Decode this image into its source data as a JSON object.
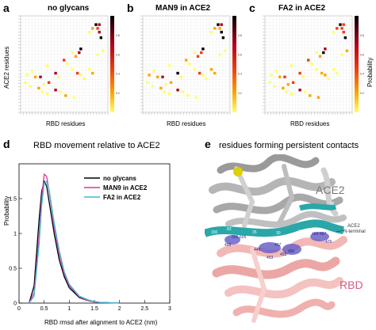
{
  "panels": {
    "a": {
      "letter": "a",
      "title": "no glycans"
    },
    "b": {
      "letter": "b",
      "title": "MAN9 in ACE2"
    },
    "c": {
      "letter": "c",
      "title": "FA2 in ACE2"
    },
    "d": {
      "letter": "d",
      "title": "RBD movement relative to ACE2"
    },
    "e": {
      "letter": "e",
      "title": "residues forming persistent contacts"
    }
  },
  "heatmap_axes": {
    "ylabel": "ACE2 residues",
    "xlabel": "RBD residues",
    "colorbar_label": "Probability",
    "colorbar_ticks": [
      "0.8",
      "0.6",
      "0.4",
      "0.2"
    ],
    "colors": {
      "high": "#000000",
      "mid_high": "#b3001b",
      "mid": "#f03c13",
      "mid_low": "#ffa500",
      "low": "#ffff66"
    }
  },
  "chart_data": [
    {
      "type": "line",
      "title": "RBD movement relative to ACE2",
      "xlabel": "RBD rmsd after alignment to ACE2 (nm)",
      "ylabel": "Probability",
      "xlim": [
        0,
        3
      ],
      "xticks": [
        "0",
        "0.5",
        "1",
        "1.5",
        "2",
        "2.5",
        "3"
      ],
      "ylim": [
        0,
        2
      ],
      "yticks": [
        "0",
        "0.5",
        "1",
        "1.5"
      ],
      "legend_position": "top-right",
      "series": [
        {
          "name": "no glycans",
          "color": "#000000",
          "x": [
            0.2,
            0.3,
            0.4,
            0.45,
            0.5,
            0.55,
            0.6,
            0.7,
            0.8,
            0.9,
            1.0,
            1.2,
            1.4,
            1.6,
            2.0
          ],
          "y": [
            0.0,
            0.25,
            1.2,
            1.6,
            1.75,
            1.68,
            1.45,
            1.0,
            0.62,
            0.38,
            0.22,
            0.08,
            0.03,
            0.01,
            0.0
          ]
        },
        {
          "name": "MAN9 in ACE2",
          "color": "#e0359a",
          "x": [
            0.2,
            0.3,
            0.4,
            0.45,
            0.5,
            0.55,
            0.6,
            0.7,
            0.8,
            0.9,
            1.0,
            1.2,
            1.4,
            1.6,
            2.0
          ],
          "y": [
            0.0,
            0.15,
            0.95,
            1.5,
            1.85,
            1.82,
            1.6,
            1.1,
            0.7,
            0.42,
            0.25,
            0.09,
            0.03,
            0.01,
            0.0
          ]
        },
        {
          "name": "FA2 in ACE2",
          "color": "#3fb6d9",
          "x": [
            0.2,
            0.3,
            0.4,
            0.45,
            0.5,
            0.55,
            0.6,
            0.7,
            0.8,
            0.9,
            1.0,
            1.2,
            1.4,
            1.6,
            2.0
          ],
          "y": [
            0.0,
            0.1,
            0.85,
            1.4,
            1.72,
            1.75,
            1.62,
            1.15,
            0.75,
            0.45,
            0.27,
            0.1,
            0.04,
            0.01,
            0.0
          ]
        }
      ]
    }
  ],
  "structure": {
    "ace2_label": "ACE2",
    "rbd_label": "RBD",
    "nterm_label_line1": "ACE2",
    "nterm_label_line2": "N-terminal",
    "ace2_residues": [
      "42",
      "38",
      "34",
      "31",
      "330",
      "35",
      "83",
      "30",
      "28"
    ],
    "rbd_residues": [
      "500-505",
      "498",
      "449",
      "417",
      "455",
      "453",
      "456",
      "486-487",
      "475"
    ]
  }
}
